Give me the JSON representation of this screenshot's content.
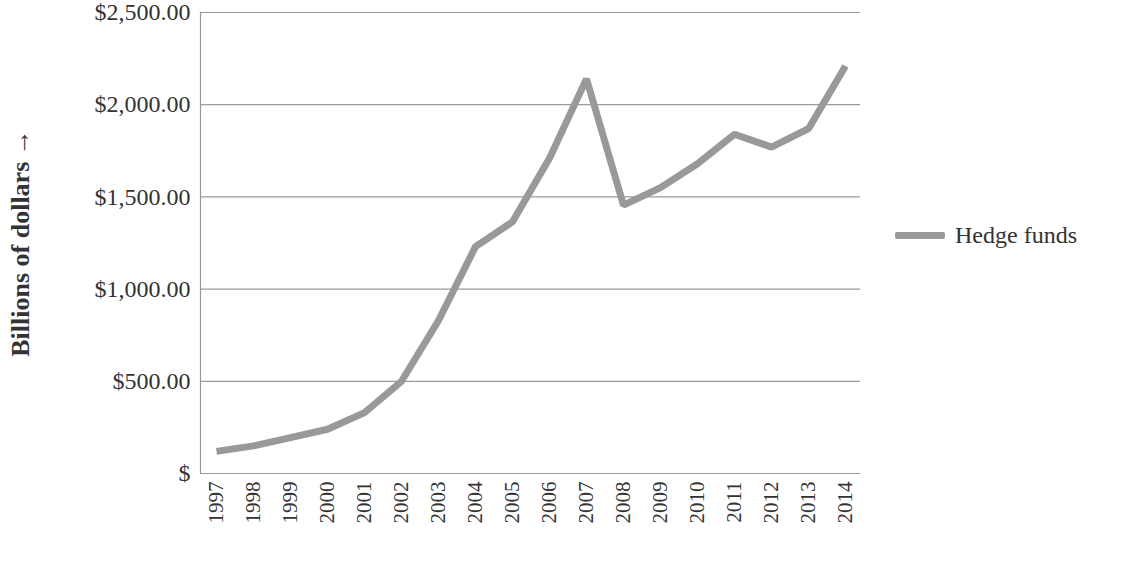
{
  "chart_data": {
    "type": "line",
    "y_label": "Billions of dollars",
    "categories": [
      "1997",
      "1998",
      "1999",
      "2000",
      "2001",
      "2002",
      "2003",
      "2004",
      "2005",
      "2006",
      "2007",
      "2008",
      "2009",
      "2010",
      "2011",
      "2012",
      "2013",
      "2014"
    ],
    "series": [
      {
        "name": "Hedge funds",
        "color": "#999999",
        "values": [
          120,
          150,
          195,
          240,
          330,
          500,
          830,
          1230,
          1365,
          1710,
          2140,
          1455,
          1550,
          1680,
          1840,
          1770,
          1870,
          2210
        ]
      }
    ],
    "ylim": [
      0,
      2500
    ],
    "yticks": [
      {
        "value": 0,
        "label": "$"
      },
      {
        "value": 500,
        "label": "$500.00"
      },
      {
        "value": 1000,
        "label": "$1,000.00"
      },
      {
        "value": 1500,
        "label": "$1,500.00"
      },
      {
        "value": 2000,
        "label": "$2,000.00"
      },
      {
        "value": 2500,
        "label": "$2,500.00"
      }
    ],
    "grid": true,
    "legend": "right"
  }
}
